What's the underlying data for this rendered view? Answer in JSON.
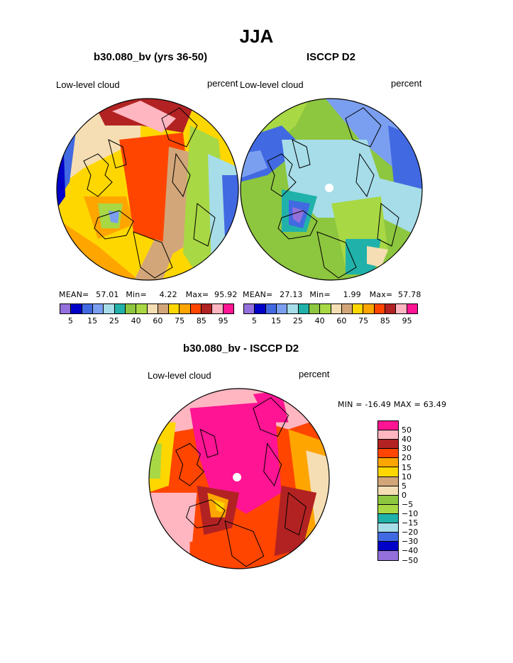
{
  "figure": {
    "title": "JJA"
  },
  "panels": [
    {
      "title": "b30.080_bv (yrs 36-50)",
      "left_label": "Low-level cloud",
      "right_label": "percent",
      "stats": {
        "mean_label": "MEAN=",
        "mean": "57.01",
        "min_label": "Min=",
        "min": "4.22",
        "max_label": "Max=",
        "max": "95.92"
      }
    },
    {
      "title": "ISCCP D2",
      "left_label": "Low-level cloud",
      "right_label": "percent",
      "stats": {
        "mean_label": "MEAN=",
        "mean": "27.13",
        "min_label": "Min=",
        "min": "1.99",
        "max_label": "Max=",
        "max": "57.78"
      }
    },
    {
      "title": "b30.080_bv - ISCCP D2",
      "left_label": "Low-level cloud",
      "right_label": "percent",
      "minmax_text": "MIN = -16.49 MAX =  63.49"
    }
  ],
  "chart_data": [
    {
      "type": "heatmap",
      "title": "b30.080_bv (yrs 36-50)",
      "projection": "north polar stereographic",
      "variable": "Low-level cloud",
      "units": "percent",
      "mean": 57.01,
      "min": 4.22,
      "max": 95.92,
      "colorbar_levels": [
        5,
        10,
        15,
        20,
        25,
        30,
        40,
        50,
        60,
        70,
        75,
        80,
        85,
        90,
        95
      ],
      "colorbar_tick_labels": [
        "5",
        "15",
        "25",
        "40",
        "60",
        "75",
        "85",
        "95"
      ],
      "colorbar_colors": [
        "#9370db",
        "#0000c8",
        "#4169e1",
        "#7b9ff0",
        "#a6dde8",
        "#20b2aa",
        "#8dc63f",
        "#a8d844",
        "#f5deb3",
        "#d2a679",
        "#ffd700",
        "#ffa500",
        "#ff4500",
        "#b22222",
        "#ffb6c1",
        "#ff1493"
      ]
    },
    {
      "type": "heatmap",
      "title": "ISCCP D2",
      "projection": "north polar stereographic",
      "variable": "Low-level cloud",
      "units": "percent",
      "mean": 27.13,
      "min": 1.99,
      "max": 57.78,
      "colorbar_levels": [
        5,
        10,
        15,
        20,
        25,
        30,
        40,
        50,
        60,
        70,
        75,
        80,
        85,
        90,
        95
      ],
      "colorbar_tick_labels": [
        "5",
        "15",
        "25",
        "40",
        "60",
        "75",
        "85",
        "95"
      ],
      "colorbar_colors": [
        "#9370db",
        "#0000c8",
        "#4169e1",
        "#7b9ff0",
        "#a6dde8",
        "#20b2aa",
        "#8dc63f",
        "#a8d844",
        "#f5deb3",
        "#d2a679",
        "#ffd700",
        "#ffa500",
        "#ff4500",
        "#b22222",
        "#ffb6c1",
        "#ff1493"
      ]
    },
    {
      "type": "heatmap",
      "title": "b30.080_bv - ISCCP D2",
      "projection": "north polar stereographic",
      "variable": "Low-level cloud",
      "units": "percent",
      "min": -16.49,
      "max": 63.49,
      "colorbar_tick_labels": [
        "50",
        "40",
        "30",
        "20",
        "15",
        "10",
        "5",
        "0",
        "−5",
        "−10",
        "−15",
        "−20",
        "−30",
        "−40",
        "−50"
      ],
      "colorbar_colors": [
        "#ff1493",
        "#ffb6c1",
        "#b22222",
        "#ff4500",
        "#ffa500",
        "#ffd700",
        "#d2a679",
        "#f5deb3",
        "#8dc63f",
        "#a8d844",
        "#20b2aa",
        "#a6dde8",
        "#4169e1",
        "#0000c8",
        "#9370db"
      ]
    }
  ]
}
